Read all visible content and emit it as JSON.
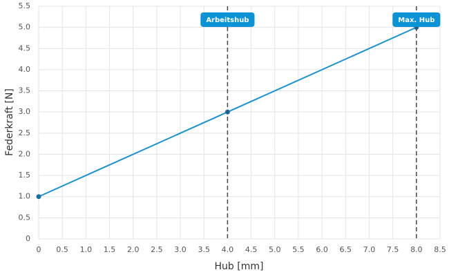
{
  "chart_data": {
    "type": "line",
    "x_label": "Hub [mm]",
    "y_label": "Federkraft [N]",
    "x": [
      0,
      4,
      8
    ],
    "series": [
      {
        "color": "#1a91d0",
        "values": [
          1,
          3,
          5
        ]
      }
    ],
    "xlim": [
      0,
      8.5
    ],
    "xticks": [
      0,
      0.5,
      {
        "value": 1,
        "label": "1.0"
      },
      1.5,
      {
        "value": 2,
        "label": "2.0"
      },
      2.5,
      {
        "value": 3,
        "label": "3.0"
      },
      3.5,
      {
        "value": 4,
        "label": "4.0"
      },
      4.5,
      {
        "value": 5,
        "label": "5.0"
      },
      5.5,
      {
        "value": 6,
        "label": "6.0"
      },
      6.5,
      {
        "value": 7,
        "label": "7.0"
      },
      7.5,
      {
        "value": 8,
        "label": "8.0"
      },
      8.5
    ],
    "ylim": [
      0,
      5.5
    ],
    "yticks": [
      0,
      0.5,
      {
        "value": 1,
        "label": "1.0"
      },
      1.5,
      {
        "value": 2,
        "label": "2.0"
      },
      2.5,
      {
        "value": 3,
        "label": "3.0"
      },
      3.5,
      {
        "value": 4,
        "label": "4.0"
      },
      4.5,
      {
        "value": 5,
        "label": "5.0"
      },
      5.5
    ],
    "grid": true,
    "annotations": [
      {
        "x": 4,
        "label": "Arbeitshub"
      },
      {
        "x": 8,
        "label": "Max. Hub"
      }
    ],
    "annotation_color": "#0a94d6"
  }
}
